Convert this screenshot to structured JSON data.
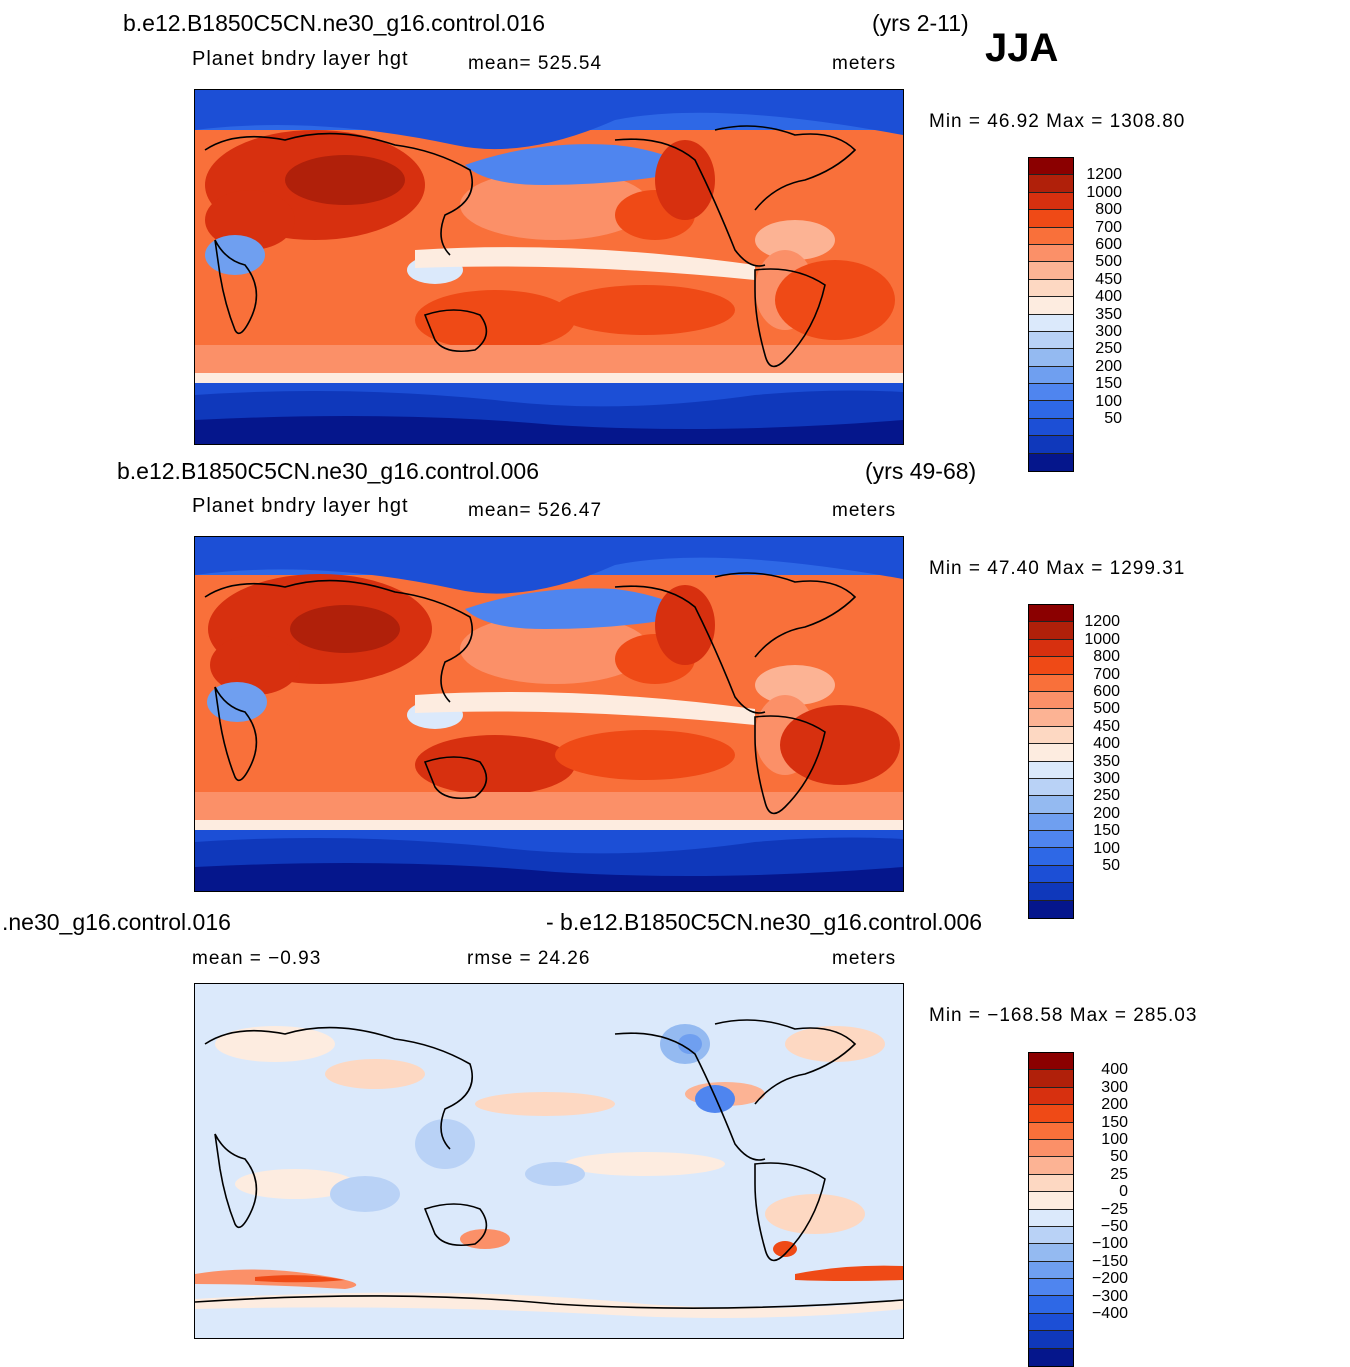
{
  "season": "JJA",
  "panels": [
    {
      "case_title": "b.e12.B1850C5CN.ne30_g16.control.016",
      "years": "(yrs 2-11)",
      "variable": "Planet  bndry  layer  hgt",
      "mean_text": "mean=  525.54",
      "units": "meters",
      "minmax_text": "Min  =    46.92  Max  =  1308.80",
      "colorbar_labels": [
        "1200",
        "1000",
        "800",
        "700",
        "600",
        "500",
        "450",
        "400",
        "350",
        "300",
        "250",
        "200",
        "150",
        "100",
        "50"
      ],
      "colorbar_colors": [
        "#8b0000",
        "#b0200a",
        "#d7300f",
        "#ef4a16",
        "#f9703a",
        "#fb9068",
        "#fcb394",
        "#fdd8c2",
        "#fdece0",
        "#dbe9fb",
        "#b9d2f6",
        "#94baf1",
        "#6f9ff0",
        "#4f85ef",
        "#2e68e6",
        "#1c4fd6",
        "#0f38bb",
        "#05168c"
      ],
      "stats": {
        "min": 46.92,
        "max": 1308.8,
        "mean": 525.54
      }
    },
    {
      "case_title": "b.e12.B1850C5CN.ne30_g16.control.006",
      "years": "(yrs 49-68)",
      "variable": "Planet  bndry  layer  hgt",
      "mean_text": "mean=  526.47",
      "units": "meters",
      "minmax_text": "Min  =    47.40  Max  =  1299.31",
      "colorbar_labels": [
        "1200",
        "1000",
        "800",
        "700",
        "600",
        "500",
        "450",
        "400",
        "350",
        "300",
        "250",
        "200",
        "150",
        "100",
        "50"
      ],
      "colorbar_colors": [
        "#8b0000",
        "#b0200a",
        "#d7300f",
        "#ef4a16",
        "#f9703a",
        "#fb9068",
        "#fcb394",
        "#fdd8c2",
        "#fdece0",
        "#dbe9fb",
        "#b9d2f6",
        "#94baf1",
        "#6f9ff0",
        "#4f85ef",
        "#2e68e6",
        "#1c4fd6",
        "#0f38bb",
        "#05168c"
      ],
      "stats": {
        "min": 47.4,
        "max": 1299.31,
        "mean": 526.47
      }
    },
    {
      "case_title_left": ".ne30_g16.control.016",
      "case_title_right": "- b.e12.B1850C5CN.ne30_g16.control.006",
      "mean_text": "mean  =    −0.93",
      "rmse_text": "rmse  =    24.26",
      "units": "meters",
      "minmax_text": "Min  =  −168.58  Max  =  285.03",
      "colorbar_labels": [
        "400",
        "300",
        "200",
        "150",
        "100",
        "50",
        "25",
        "0",
        "−25",
        "−50",
        "−100",
        "−150",
        "−200",
        "−300",
        "−400"
      ],
      "colorbar_colors": [
        "#8b0000",
        "#b0200a",
        "#d7300f",
        "#ef4a16",
        "#f9703a",
        "#fb9068",
        "#fcb394",
        "#fdd8c2",
        "#fdece0",
        "#dbe9fb",
        "#b9d2f6",
        "#94baf1",
        "#6f9ff0",
        "#4f85ef",
        "#2e68e6",
        "#1c4fd6",
        "#0f38bb",
        "#05168c"
      ],
      "stats": {
        "min": -168.58,
        "max": 285.03,
        "mean": -0.93,
        "rmse": 24.26
      }
    }
  ]
}
